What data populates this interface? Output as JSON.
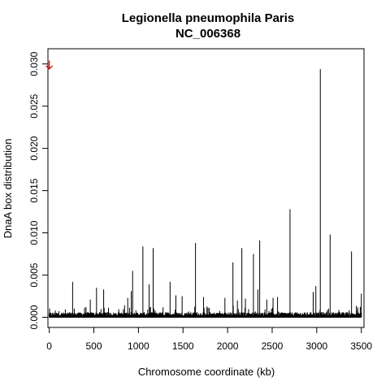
{
  "chart_data": {
    "type": "bar",
    "title": "Legionella pneumophila Paris",
    "subtitle": "NC_006368",
    "xlabel": "Chromosome coordinate (kb)",
    "ylabel": "DnaA box distribution",
    "xlim": [
      -15,
      3530
    ],
    "ylim": [
      -0.0012,
      0.0318
    ],
    "x_ticks": [
      0,
      500,
      1000,
      1500,
      2000,
      2500,
      3000,
      3500
    ],
    "x_tick_labels": [
      "0",
      "500",
      "1000",
      "1500",
      "2000",
      "2500",
      "3000",
      "3500"
    ],
    "y_ticks": [
      0.0,
      0.005,
      0.01,
      0.015,
      0.02,
      0.025,
      0.03
    ],
    "y_tick_labels": [
      "0.000",
      "0.005",
      "0.010",
      "0.015",
      "0.020",
      "0.025",
      "0.030"
    ],
    "grid": false,
    "bar_color": "#000000",
    "annotation": {
      "label": "origin-arrow",
      "x": 0,
      "y_from": 0.0304,
      "y_to": 0.0294,
      "color": "#cc0000"
    },
    "peaks": [
      {
        "x": 262,
        "y": 0.0042
      },
      {
        "x": 460,
        "y": 0.0021
      },
      {
        "x": 530,
        "y": 0.0035
      },
      {
        "x": 610,
        "y": 0.0033
      },
      {
        "x": 880,
        "y": 0.0023
      },
      {
        "x": 920,
        "y": 0.0031
      },
      {
        "x": 935,
        "y": 0.0055
      },
      {
        "x": 1050,
        "y": 0.0084
      },
      {
        "x": 1120,
        "y": 0.0039
      },
      {
        "x": 1165,
        "y": 0.0082
      },
      {
        "x": 1355,
        "y": 0.0042
      },
      {
        "x": 1420,
        "y": 0.0026
      },
      {
        "x": 1490,
        "y": 0.0025
      },
      {
        "x": 1640,
        "y": 0.0088
      },
      {
        "x": 1730,
        "y": 0.0024
      },
      {
        "x": 1970,
        "y": 0.0023
      },
      {
        "x": 2060,
        "y": 0.0065
      },
      {
        "x": 2110,
        "y": 0.002
      },
      {
        "x": 2160,
        "y": 0.0082
      },
      {
        "x": 2200,
        "y": 0.0022
      },
      {
        "x": 2290,
        "y": 0.0075
      },
      {
        "x": 2340,
        "y": 0.0033
      },
      {
        "x": 2360,
        "y": 0.0091
      },
      {
        "x": 2440,
        "y": 0.0021
      },
      {
        "x": 2510,
        "y": 0.0023
      },
      {
        "x": 2560,
        "y": 0.0024
      },
      {
        "x": 2700,
        "y": 0.0128
      },
      {
        "x": 2960,
        "y": 0.003
      },
      {
        "x": 2990,
        "y": 0.0037
      },
      {
        "x": 3040,
        "y": 0.0294
      },
      {
        "x": 3150,
        "y": 0.0098
      },
      {
        "x": 3390,
        "y": 0.0078
      },
      {
        "x": 3500,
        "y": 0.0028
      }
    ]
  }
}
